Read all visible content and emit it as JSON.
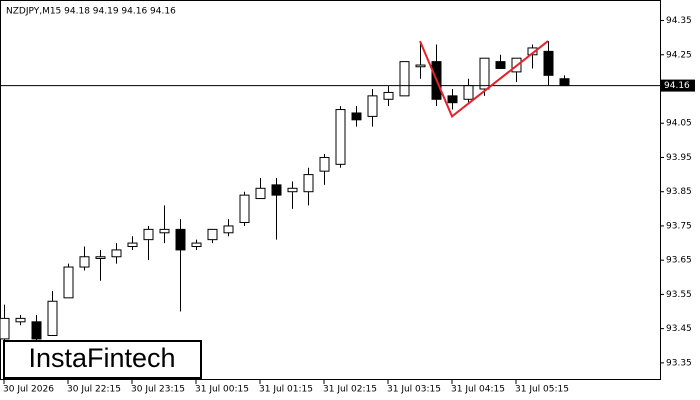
{
  "chart_data": {
    "type": "candlestick",
    "title": "NZDJPY,M15  94.18 94.19 94.16 94.16",
    "categories": [
      "30 Jul 2026",
      null,
      null,
      null,
      "30 Jul 22:15",
      null,
      null,
      null,
      "30 Jul 23:15",
      null,
      null,
      null,
      "31 Jul 00:15",
      null,
      null,
      null,
      "31 Jul 01:15",
      null,
      null,
      null,
      "31 Jul 02:15",
      null,
      null,
      null,
      "31 Jul 03:15",
      null,
      null,
      null,
      "31 Jul 04:15",
      null,
      null,
      null,
      "31 Jul 05:15",
      null,
      null,
      null
    ],
    "open": [
      93.42,
      93.47,
      93.47,
      93.43,
      93.54,
      93.63,
      93.655,
      93.66,
      93.69,
      93.71,
      93.73,
      93.74,
      93.69,
      93.71,
      93.73,
      93.76,
      93.83,
      93.87,
      93.85,
      93.85,
      93.91,
      93.93,
      94.08,
      94.07,
      94.12,
      94.13,
      94.215,
      94.23,
      94.13,
      94.12,
      94.15,
      94.23,
      94.2,
      94.25,
      94.26,
      94.18
    ],
    "high": [
      93.52,
      93.49,
      93.49,
      93.56,
      93.64,
      93.69,
      93.68,
      93.7,
      93.72,
      93.75,
      93.81,
      93.77,
      93.71,
      93.74,
      93.77,
      93.85,
      93.89,
      93.89,
      93.88,
      93.92,
      93.96,
      94.1,
      94.1,
      94.15,
      94.16,
      94.23,
      94.29,
      94.28,
      94.15,
      94.18,
      94.24,
      94.25,
      94.24,
      94.28,
      94.29,
      94.19
    ],
    "low": [
      93.41,
      93.46,
      93.41,
      93.43,
      93.54,
      93.62,
      93.59,
      93.64,
      93.68,
      93.65,
      93.7,
      93.5,
      93.68,
      93.7,
      93.72,
      93.75,
      93.83,
      93.71,
      93.8,
      93.81,
      93.87,
      93.92,
      94.04,
      94.04,
      94.1,
      94.13,
      94.18,
      94.1,
      94.09,
      94.11,
      94.13,
      94.21,
      94.17,
      94.21,
      94.16,
      94.16
    ],
    "close": [
      93.48,
      93.48,
      93.42,
      93.53,
      93.63,
      93.66,
      93.66,
      93.68,
      93.7,
      93.74,
      93.74,
      93.68,
      93.7,
      93.74,
      93.75,
      93.84,
      93.86,
      93.84,
      93.86,
      93.9,
      93.95,
      94.09,
      94.06,
      94.13,
      94.14,
      94.23,
      94.22,
      94.12,
      94.11,
      94.16,
      94.24,
      94.21,
      94.24,
      94.27,
      94.19,
      94.16
    ],
    "up_color": "#ffffff",
    "down_color": "#000000",
    "edge_color": "#000000",
    "ylim": [
      93.3,
      94.41
    ],
    "yticks": [
      93.35,
      93.45,
      93.55,
      93.65,
      93.75,
      93.85,
      93.95,
      94.05,
      94.15,
      94.25,
      94.35
    ],
    "current_price": 94.16,
    "pattern": {
      "color": "#e8202a",
      "x": [
        26,
        28,
        34
      ],
      "y": [
        94.29,
        94.07,
        94.29
      ]
    }
  },
  "logo": "InstaFintech"
}
